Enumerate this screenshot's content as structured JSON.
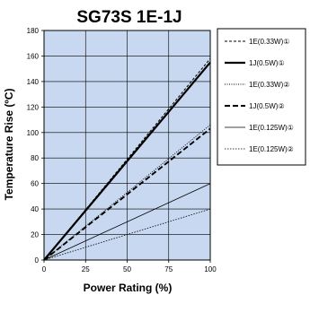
{
  "chart_data": {
    "type": "line",
    "title": "SG73S 1E-1J",
    "xlabel": "Power Rating (%)",
    "ylabel": "Temperature Rise (ºC)",
    "xlim": [
      0,
      100
    ],
    "ylim": [
      0,
      180
    ],
    "xticks": [
      "0",
      "25",
      "50",
      "75",
      "100"
    ],
    "yticks": [
      "0",
      "20",
      "40",
      "60",
      "80",
      "100",
      "120",
      "140",
      "160",
      "180"
    ],
    "grid": true,
    "legend_position": "right",
    "colors": {
      "plot_background": "#c8d8f0",
      "grid": "#000000",
      "line": "#000000"
    },
    "series": [
      {
        "name": "1E(0.33W)①",
        "style": "short-dash",
        "x": [
          0,
          100
        ],
        "y": [
          0,
          158
        ]
      },
      {
        "name": "1J(0.5W)①",
        "style": "thick-solid",
        "x": [
          0,
          100
        ],
        "y": [
          0,
          155
        ]
      },
      {
        "name": "1E(0.33W)②",
        "style": "dotted",
        "x": [
          0,
          100
        ],
        "y": [
          0,
          106
        ]
      },
      {
        "name": "1J(0.5W)②",
        "style": "thick-dash",
        "x": [
          0,
          100
        ],
        "y": [
          0,
          103
        ]
      },
      {
        "name": "1E(0.125W)①",
        "style": "thin-solid",
        "x": [
          0,
          100
        ],
        "y": [
          0,
          60
        ]
      },
      {
        "name": "1E(0.125W)②",
        "style": "thin-dotted",
        "x": [
          0,
          100
        ],
        "y": [
          0,
          40
        ]
      }
    ]
  }
}
